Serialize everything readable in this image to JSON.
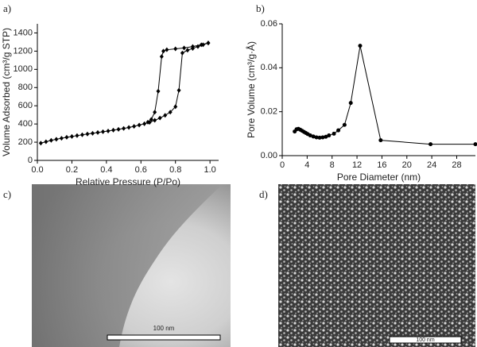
{
  "panel_labels": [
    "a)",
    "b)",
    "c)",
    "d)"
  ],
  "images": [
    {
      "scale_bar": "100 nm"
    },
    {
      "scale_bar": "100 nm"
    }
  ],
  "chart_data": [
    {
      "type": "line",
      "marker": "diamond",
      "color": "#000000",
      "ylabel": "Volume Adsorbed (cm³/g STP)",
      "xlabel": "Relative Pressure (P/Po)",
      "xlim": [
        0,
        1.05
      ],
      "ylim": [
        0,
        1500
      ],
      "xticks": [
        {
          "value": 0,
          "label": "0.0"
        },
        0.2,
        0.4,
        0.6,
        0.8,
        {
          "value": 1,
          "label": "1.0"
        }
      ],
      "yticks": [
        0,
        200,
        400,
        600,
        800,
        1000,
        1200,
        1400
      ],
      "series": [
        {
          "x": [
            0.02,
            0.05,
            0.08,
            0.11,
            0.14,
            0.17,
            0.2,
            0.23,
            0.26,
            0.29,
            0.32,
            0.35,
            0.38,
            0.41,
            0.44,
            0.47,
            0.5,
            0.53,
            0.56,
            0.59,
            0.62,
            0.65,
            0.68,
            0.71,
            0.74,
            0.77,
            0.8,
            0.82,
            0.84,
            0.87,
            0.9,
            0.93,
            0.96,
            0.99
          ],
          "values": [
            190,
            205,
            220,
            232,
            243,
            254,
            263,
            272,
            281,
            290,
            298,
            306,
            315,
            323,
            332,
            341,
            351,
            362,
            374,
            388,
            402,
            418,
            440,
            465,
            495,
            530,
            590,
            770,
            1180,
            1210,
            1230,
            1250,
            1270,
            1290
          ]
        },
        {
          "x": [
            0.99,
            0.95,
            0.9,
            0.85,
            0.8,
            0.75,
            0.73,
            0.72,
            0.7,
            0.68,
            0.66,
            0.64
          ],
          "values": [
            1290,
            1270,
            1250,
            1235,
            1225,
            1215,
            1200,
            1140,
            760,
            530,
            450,
            420
          ]
        }
      ]
    },
    {
      "type": "line",
      "marker": "circle",
      "color": "#000000",
      "ylabel": "Pore Volume (cm³/g·Å)",
      "xlabel": "Pore Diameter (nm)",
      "xlim": [
        0,
        31
      ],
      "ylim": [
        0,
        0.06
      ],
      "xticks": [
        0,
        4,
        8,
        12,
        16,
        20,
        24,
        28
      ],
      "yticks": [
        {
          "value": 0,
          "label": "0.00"
        },
        0.02,
        0.04,
        0.06
      ],
      "series": [
        {
          "x": [
            2,
            2.3,
            2.6,
            2.9,
            3.2,
            3.5,
            3.8,
            4.1,
            4.5,
            5,
            5.5,
            6,
            6.5,
            7,
            7.5,
            8.3,
            9,
            10,
            11,
            12.5,
            15.8,
            23.8,
            31
          ],
          "values": [
            0.011,
            0.012,
            0.0122,
            0.0118,
            0.0113,
            0.0108,
            0.0103,
            0.0098,
            0.0092,
            0.0087,
            0.0083,
            0.0082,
            0.0083,
            0.0086,
            0.0092,
            0.01,
            0.0115,
            0.014,
            0.024,
            0.05,
            0.007,
            0.0052,
            0.0052
          ]
        }
      ]
    }
  ]
}
